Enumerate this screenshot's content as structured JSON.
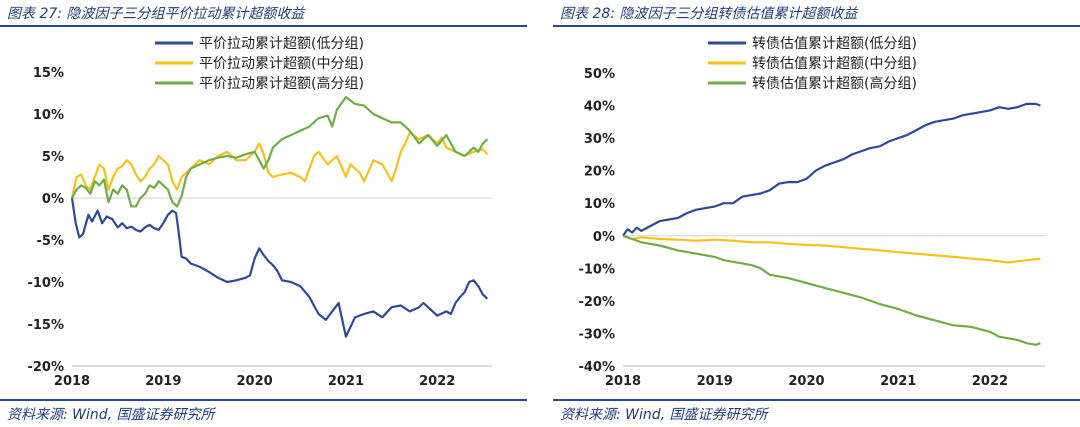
{
  "left": {
    "title": "图表 27: 隐波因子三分组平价拉动累计超额收益",
    "source": "资料来源: Wind, 国盛证券研究所",
    "chart_data": {
      "type": "line",
      "y_format": "percent",
      "ylim": [
        -0.2,
        0.15
      ],
      "yticks": [
        -0.2,
        -0.15,
        -0.1,
        -0.05,
        0.0,
        0.05,
        0.1,
        0.15
      ],
      "ytick_labels": [
        "-20%",
        "-15%",
        "-10%",
        "-5%",
        "0%",
        "5%",
        "10%",
        "15%"
      ],
      "xlim": [
        2018.0,
        2022.6
      ],
      "xticks": [
        2018,
        2019,
        2020,
        2021,
        2022
      ],
      "xtick_labels": [
        "2018",
        "2019",
        "2020",
        "2021",
        "2022"
      ],
      "legend_position": "top",
      "series": [
        {
          "name": "平价拉动累计超额(低分组)",
          "color": "#2e4a96",
          "x": [
            2018.0,
            2018.04,
            2018.08,
            2018.12,
            2018.18,
            2018.22,
            2018.28,
            2018.33,
            2018.38,
            2018.44,
            2018.5,
            2018.55,
            2018.6,
            2018.65,
            2018.7,
            2018.75,
            2018.8,
            2018.85,
            2018.9,
            2018.95,
            2019.0,
            2019.05,
            2019.1,
            2019.14,
            2019.17,
            2019.2,
            2019.25,
            2019.3,
            2019.4,
            2019.5,
            2019.6,
            2019.7,
            2019.8,
            2019.9,
            2019.95,
            2020.0,
            2020.05,
            2020.1,
            2020.15,
            2020.2,
            2020.25,
            2020.3,
            2020.4,
            2020.5,
            2020.6,
            2020.7,
            2020.78,
            2020.85,
            2020.92,
            2021.0,
            2021.1,
            2021.2,
            2021.3,
            2021.4,
            2021.5,
            2021.6,
            2021.7,
            2021.8,
            2021.85,
            2021.9,
            2022.0,
            2022.1,
            2022.15,
            2022.2,
            2022.25,
            2022.3,
            2022.35,
            2022.4,
            2022.45,
            2022.5,
            2022.55
          ],
          "y": [
            0.0,
            -0.03,
            -0.047,
            -0.043,
            -0.02,
            -0.028,
            -0.015,
            -0.03,
            -0.022,
            -0.025,
            -0.035,
            -0.03,
            -0.036,
            -0.034,
            -0.038,
            -0.04,
            -0.035,
            -0.032,
            -0.036,
            -0.038,
            -0.03,
            -0.02,
            -0.015,
            -0.018,
            -0.042,
            -0.07,
            -0.072,
            -0.078,
            -0.082,
            -0.088,
            -0.095,
            -0.1,
            -0.098,
            -0.095,
            -0.092,
            -0.072,
            -0.06,
            -0.068,
            -0.075,
            -0.08,
            -0.087,
            -0.098,
            -0.1,
            -0.105,
            -0.118,
            -0.138,
            -0.145,
            -0.135,
            -0.125,
            -0.165,
            -0.142,
            -0.138,
            -0.135,
            -0.142,
            -0.13,
            -0.128,
            -0.135,
            -0.13,
            -0.125,
            -0.13,
            -0.14,
            -0.135,
            -0.138,
            -0.125,
            -0.118,
            -0.112,
            -0.1,
            -0.098,
            -0.105,
            -0.115,
            -0.12
          ]
        },
        {
          "name": "平价拉动累计超额(中分组)",
          "color": "#f5c21a",
          "x": [
            2018.0,
            2018.05,
            2018.1,
            2018.15,
            2018.2,
            2018.25,
            2018.3,
            2018.35,
            2018.4,
            2018.45,
            2018.5,
            2018.55,
            2018.6,
            2018.65,
            2018.7,
            2018.75,
            2018.8,
            2018.85,
            2018.9,
            2018.95,
            2019.0,
            2019.05,
            2019.1,
            2019.15,
            2019.2,
            2019.3,
            2019.4,
            2019.5,
            2019.6,
            2019.7,
            2019.8,
            2019.9,
            2020.0,
            2020.05,
            2020.1,
            2020.15,
            2020.2,
            2020.3,
            2020.4,
            2020.5,
            2020.55,
            2020.6,
            2020.65,
            2020.7,
            2020.8,
            2020.9,
            2021.0,
            2021.05,
            2021.1,
            2021.15,
            2021.2,
            2021.3,
            2021.4,
            2021.5,
            2021.55,
            2021.6,
            2021.65,
            2021.7,
            2021.8,
            2021.9,
            2022.0,
            2022.05,
            2022.1,
            2022.2,
            2022.3,
            2022.4,
            2022.5,
            2022.55
          ],
          "y": [
            0.0,
            0.025,
            0.028,
            0.015,
            0.01,
            0.025,
            0.04,
            0.035,
            0.01,
            0.025,
            0.035,
            0.038,
            0.045,
            0.04,
            0.028,
            0.02,
            0.025,
            0.035,
            0.04,
            0.05,
            0.045,
            0.04,
            0.02,
            0.01,
            0.025,
            0.035,
            0.045,
            0.04,
            0.05,
            0.055,
            0.045,
            0.045,
            0.055,
            0.065,
            0.052,
            0.03,
            0.025,
            0.028,
            0.03,
            0.025,
            0.02,
            0.035,
            0.05,
            0.055,
            0.04,
            0.05,
            0.025,
            0.04,
            0.035,
            0.03,
            0.02,
            0.045,
            0.04,
            0.02,
            0.035,
            0.055,
            0.065,
            0.078,
            0.07,
            0.075,
            0.065,
            0.072,
            0.06,
            0.055,
            0.05,
            0.055,
            0.058,
            0.052
          ]
        },
        {
          "name": "平价拉动累计超额(高分组)",
          "color": "#70ad47",
          "x": [
            2018.0,
            2018.05,
            2018.1,
            2018.15,
            2018.2,
            2018.25,
            2018.3,
            2018.35,
            2018.4,
            2018.45,
            2018.5,
            2018.55,
            2018.6,
            2018.65,
            2018.7,
            2018.75,
            2018.8,
            2018.85,
            2018.9,
            2018.95,
            2019.0,
            2019.05,
            2019.1,
            2019.15,
            2019.2,
            2019.25,
            2019.3,
            2019.4,
            2019.5,
            2019.6,
            2019.7,
            2019.8,
            2019.9,
            2020.0,
            2020.05,
            2020.1,
            2020.15,
            2020.2,
            2020.3,
            2020.4,
            2020.5,
            2020.6,
            2020.7,
            2020.8,
            2020.85,
            2020.9,
            2021.0,
            2021.1,
            2021.2,
            2021.3,
            2021.4,
            2021.5,
            2021.6,
            2021.7,
            2021.8,
            2021.9,
            2022.0,
            2022.1,
            2022.2,
            2022.3,
            2022.4,
            2022.45,
            2022.5,
            2022.55
          ],
          "y": [
            0.0,
            0.01,
            0.015,
            0.012,
            0.005,
            0.02,
            0.015,
            0.022,
            -0.005,
            0.01,
            0.005,
            0.015,
            0.01,
            -0.01,
            -0.01,
            0.0,
            0.005,
            0.015,
            0.012,
            0.02,
            0.015,
            0.01,
            -0.005,
            -0.01,
            0.002,
            0.025,
            0.035,
            0.04,
            0.045,
            0.048,
            0.05,
            0.048,
            0.052,
            0.055,
            0.045,
            0.035,
            0.045,
            0.06,
            0.07,
            0.075,
            0.08,
            0.085,
            0.095,
            0.098,
            0.085,
            0.105,
            0.12,
            0.112,
            0.11,
            0.1,
            0.095,
            0.09,
            0.09,
            0.08,
            0.065,
            0.075,
            0.062,
            0.075,
            0.055,
            0.05,
            0.06,
            0.055,
            0.065,
            0.07
          ]
        }
      ]
    }
  },
  "right": {
    "title": "图表 28: 隐波因子三分组转债估值累计超额收益",
    "source": "资料来源: Wind, 国盛证券研究所",
    "chart_data": {
      "type": "line",
      "y_format": "percent",
      "ylim": [
        -0.4,
        0.5
      ],
      "yticks": [
        -0.4,
        -0.3,
        -0.2,
        -0.1,
        0.0,
        0.1,
        0.2,
        0.3,
        0.4,
        0.5
      ],
      "ytick_labels": [
        "-40%",
        "-30%",
        "-20%",
        "-10%",
        "0%",
        "10%",
        "20%",
        "30%",
        "40%",
        "50%"
      ],
      "xlim": [
        2018.0,
        2022.6
      ],
      "xticks": [
        2018,
        2019,
        2020,
        2021,
        2022
      ],
      "xtick_labels": [
        "2018",
        "2019",
        "2020",
        "2021",
        "2022"
      ],
      "legend_position": "top",
      "series": [
        {
          "name": "转债估值累计超额(低分组)",
          "color": "#2e4a96",
          "x": [
            2018.0,
            2018.05,
            2018.1,
            2018.15,
            2018.2,
            2018.3,
            2018.4,
            2018.5,
            2018.6,
            2018.7,
            2018.8,
            2018.9,
            2019.0,
            2019.1,
            2019.2,
            2019.3,
            2019.4,
            2019.5,
            2019.6,
            2019.7,
            2019.8,
            2019.9,
            2020.0,
            2020.1,
            2020.2,
            2020.3,
            2020.4,
            2020.5,
            2020.6,
            2020.7,
            2020.8,
            2020.9,
            2021.0,
            2021.1,
            2021.2,
            2021.3,
            2021.4,
            2021.5,
            2021.6,
            2021.7,
            2021.8,
            2021.9,
            2022.0,
            2022.1,
            2022.2,
            2022.3,
            2022.4,
            2022.5,
            2022.55
          ],
          "y": [
            0.0,
            0.02,
            0.01,
            0.025,
            0.015,
            0.03,
            0.045,
            0.05,
            0.055,
            0.07,
            0.08,
            0.085,
            0.09,
            0.1,
            0.1,
            0.12,
            0.125,
            0.13,
            0.14,
            0.16,
            0.165,
            0.165,
            0.175,
            0.2,
            0.215,
            0.225,
            0.235,
            0.25,
            0.26,
            0.27,
            0.275,
            0.29,
            0.3,
            0.31,
            0.325,
            0.34,
            0.35,
            0.355,
            0.36,
            0.37,
            0.375,
            0.38,
            0.385,
            0.395,
            0.39,
            0.395,
            0.405,
            0.405,
            0.4
          ]
        },
        {
          "name": "转债估值累计超额(中分组)",
          "color": "#f5c21a",
          "x": [
            2018.0,
            2018.1,
            2018.2,
            2018.4,
            2018.6,
            2018.8,
            2019.0,
            2019.2,
            2019.4,
            2019.6,
            2019.8,
            2020.0,
            2020.2,
            2020.4,
            2020.6,
            2020.8,
            2021.0,
            2021.2,
            2021.4,
            2021.6,
            2021.8,
            2022.0,
            2022.2,
            2022.4,
            2022.55
          ],
          "y": [
            0.0,
            -0.01,
            -0.005,
            -0.01,
            -0.012,
            -0.015,
            -0.012,
            -0.015,
            -0.02,
            -0.02,
            -0.025,
            -0.028,
            -0.03,
            -0.035,
            -0.04,
            -0.045,
            -0.05,
            -0.055,
            -0.06,
            -0.065,
            -0.07,
            -0.075,
            -0.082,
            -0.075,
            -0.07
          ]
        },
        {
          "name": "转债估值累计超额(高分组)",
          "color": "#70ad47",
          "x": [
            2018.0,
            2018.1,
            2018.2,
            2018.4,
            2018.6,
            2018.8,
            2019.0,
            2019.1,
            2019.2,
            2019.3,
            2019.4,
            2019.5,
            2019.6,
            2019.8,
            2020.0,
            2020.2,
            2020.4,
            2020.6,
            2020.8,
            2021.0,
            2021.2,
            2021.4,
            2021.6,
            2021.8,
            2022.0,
            2022.1,
            2022.2,
            2022.3,
            2022.4,
            2022.5,
            2022.55
          ],
          "y": [
            0.0,
            -0.01,
            -0.02,
            -0.03,
            -0.045,
            -0.055,
            -0.065,
            -0.075,
            -0.08,
            -0.085,
            -0.09,
            -0.1,
            -0.12,
            -0.13,
            -0.145,
            -0.16,
            -0.175,
            -0.19,
            -0.21,
            -0.225,
            -0.245,
            -0.26,
            -0.275,
            -0.28,
            -0.295,
            -0.31,
            -0.315,
            -0.32,
            -0.33,
            -0.335,
            -0.33
          ]
        }
      ]
    }
  }
}
